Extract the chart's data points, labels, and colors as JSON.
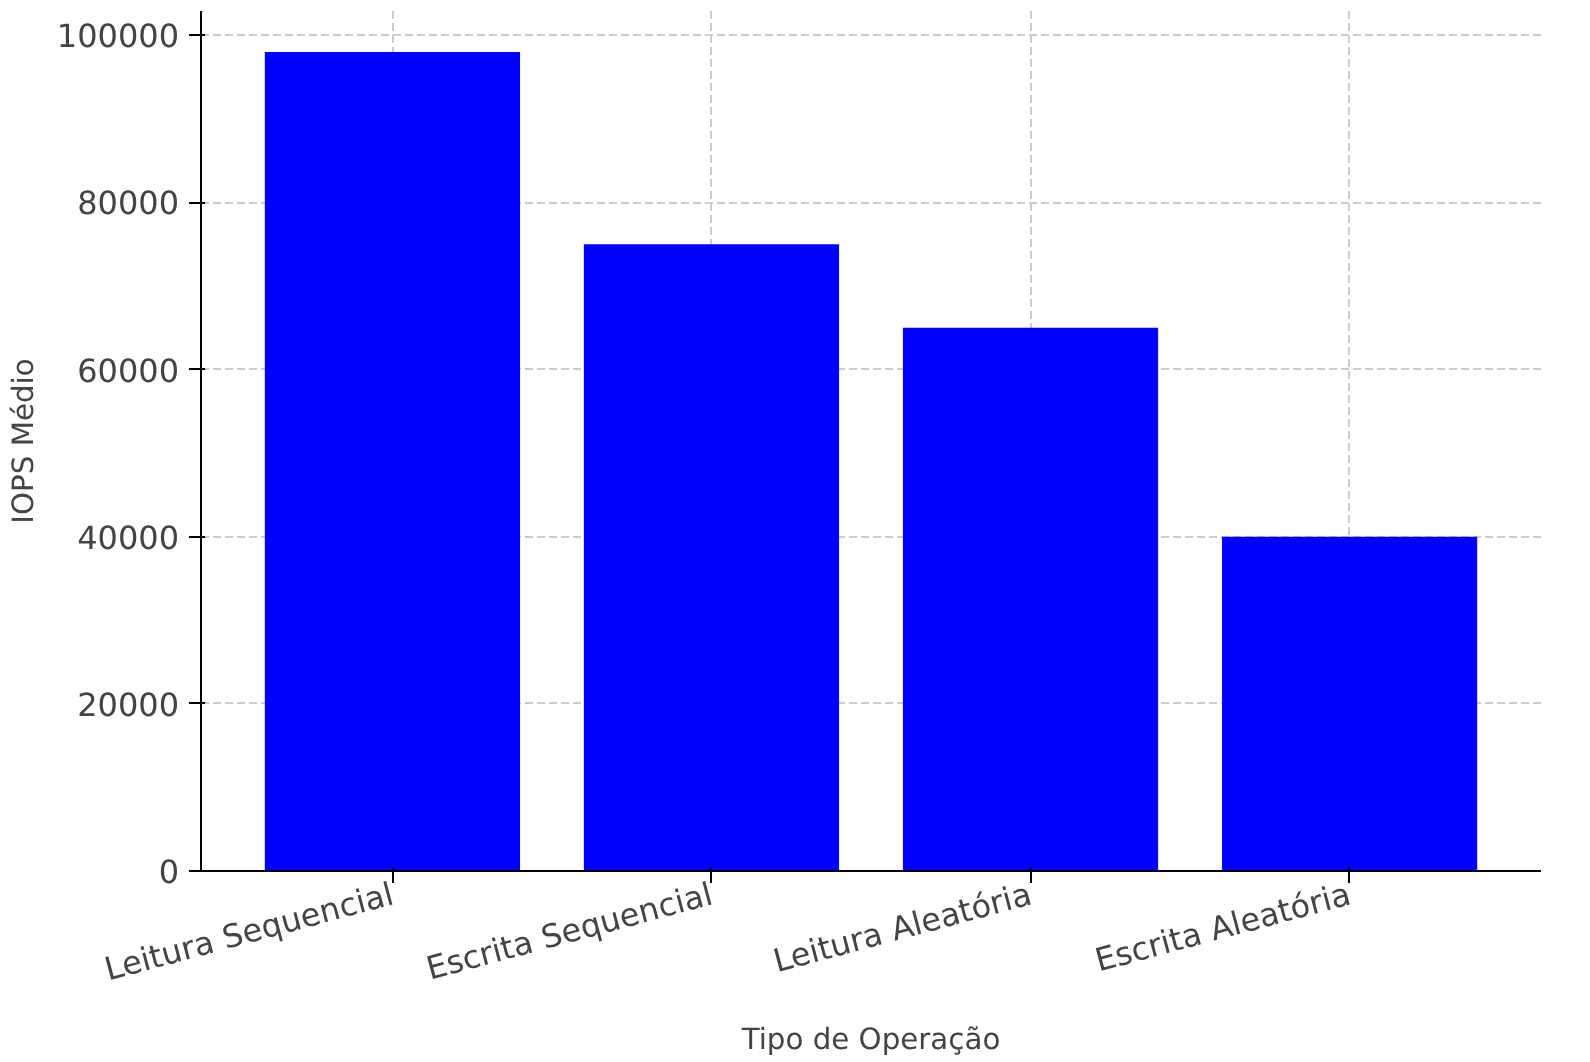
{
  "chart_data": {
    "type": "bar",
    "xlabel": "Tipo de Operação",
    "ylabel": "IOPS Médio",
    "categories": [
      "Leitura Sequencial",
      "Escrita Sequencial",
      "Leitura Aleatória",
      "Escrita Aleatória"
    ],
    "values": [
      98000,
      75000,
      65000,
      40000
    ],
    "color": "#0000ff",
    "ylim": [
      0,
      102900
    ],
    "yticks": [
      0,
      20000,
      40000,
      60000,
      80000,
      100000
    ],
    "grid": true
  }
}
